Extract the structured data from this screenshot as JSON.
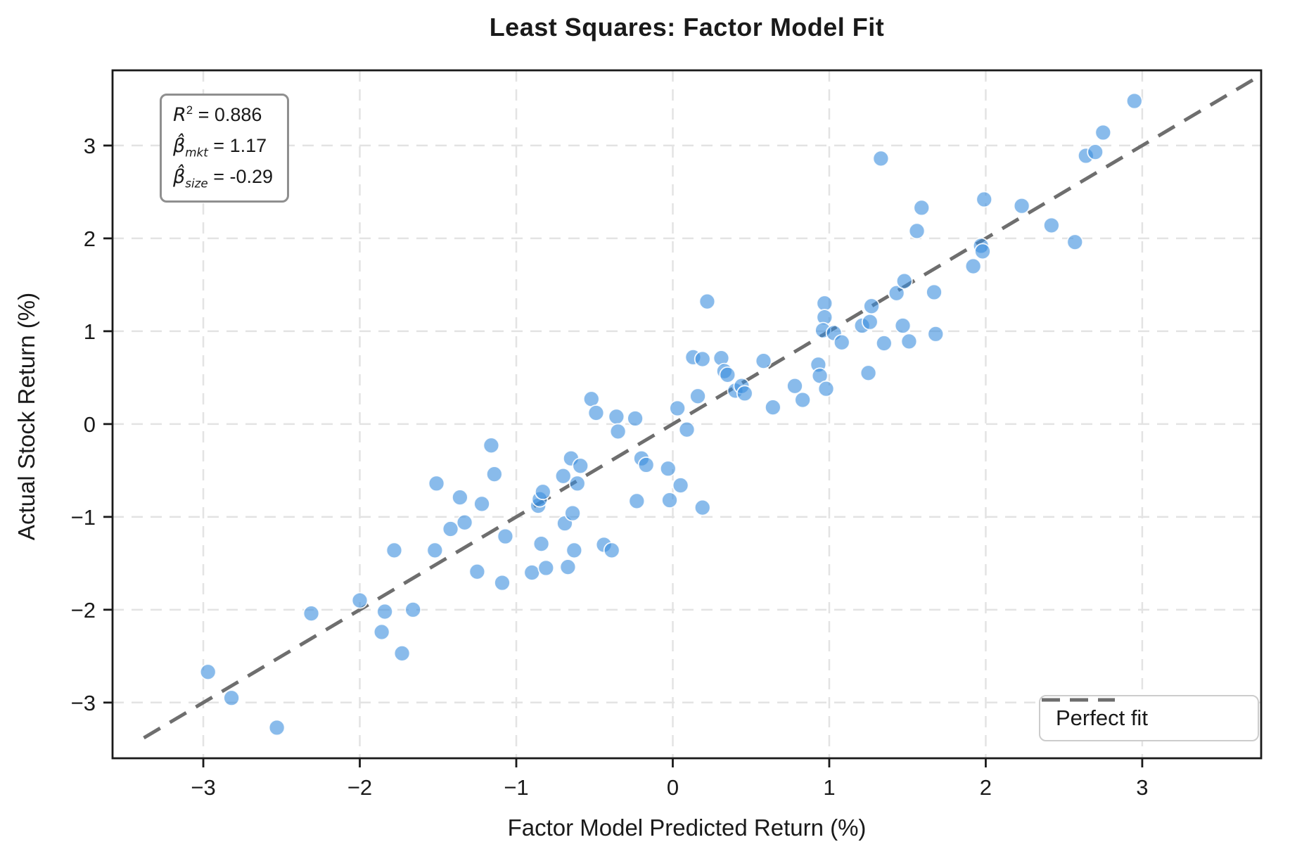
{
  "title": "Least Squares: Factor Model Fit",
  "x_axis_label": "Factor Model Predicted Return (%)",
  "y_axis_label": "Actual Stock Return (%)",
  "stats_box": {
    "lines": [
      {
        "sym": "R",
        "sup": "2",
        "sub": "",
        "rest": " = 0.886"
      },
      {
        "sym": "β̂",
        "sup": "",
        "sub": "mkt",
        "rest": " = 1.17"
      },
      {
        "sym": "β̂",
        "sup": "",
        "sub": "size",
        "rest": " = -0.29"
      }
    ]
  },
  "legend": {
    "label": "Perfect fit"
  },
  "chart_data": {
    "type": "scatter",
    "title": "Least Squares: Factor Model Fit",
    "xlabel": "Factor Model Predicted Return (%)",
    "ylabel": "Actual Stock Return (%)",
    "xlim": [
      -3.58,
      3.76
    ],
    "ylim": [
      -3.6,
      3.81
    ],
    "x_ticks": {
      "values": [
        -3,
        -2,
        -1,
        0,
        1,
        2,
        3
      ],
      "labels": [
        "−3",
        "−2",
        "−1",
        "0",
        "1",
        "2",
        "3"
      ]
    },
    "y_ticks": {
      "values": [
        -3,
        -2,
        -1,
        0,
        1,
        2,
        3
      ],
      "labels": [
        "−3",
        "−2",
        "−1",
        "0",
        "1",
        "2",
        "3"
      ]
    },
    "grid": true,
    "legend_position": "lower right",
    "fit_line": {
      "name": "Perfect fit",
      "x0": -3.38,
      "y0": -3.38,
      "x1": 3.72,
      "y1": 3.72,
      "color": "#6e6e6e",
      "dash": "27 16",
      "width": 5
    },
    "annotations": {
      "r_squared": 0.886,
      "beta_mkt": 1.17,
      "beta_size": -0.29
    },
    "style": {
      "point_fill": "#3a8ede",
      "point_opacity": 0.6,
      "point_edge": "#ffffff",
      "point_radius": 11,
      "grid_color": "#e3e3e3",
      "grid_dash": "16 11",
      "spine_color": "#1a1a1a",
      "text_color": "#1a1a1a"
    },
    "points": [
      [
        -2.97,
        -2.67
      ],
      [
        -2.82,
        -2.95
      ],
      [
        -2.53,
        -3.27
      ],
      [
        -2.31,
        -2.04
      ],
      [
        -2.0,
        -1.9
      ],
      [
        -1.86,
        -2.24
      ],
      [
        -1.84,
        -2.02
      ],
      [
        -1.73,
        -2.47
      ],
      [
        -1.66,
        -2.0
      ],
      [
        -1.78,
        -1.36
      ],
      [
        -1.52,
        -1.36
      ],
      [
        -1.51,
        -0.64
      ],
      [
        -1.42,
        -1.13
      ],
      [
        -1.36,
        -0.79
      ],
      [
        -1.33,
        -1.06
      ],
      [
        -1.25,
        -1.59
      ],
      [
        -1.22,
        -0.86
      ],
      [
        -1.16,
        -0.23
      ],
      [
        -1.14,
        -0.54
      ],
      [
        -1.09,
        -1.71
      ],
      [
        -1.07,
        -1.21
      ],
      [
        -0.9,
        -1.6
      ],
      [
        -0.86,
        -0.88
      ],
      [
        -0.85,
        -0.81
      ],
      [
        -0.84,
        -1.29
      ],
      [
        -0.83,
        -0.73
      ],
      [
        -0.81,
        -1.55
      ],
      [
        -0.7,
        -0.56
      ],
      [
        -0.69,
        -1.07
      ],
      [
        -0.67,
        -1.54
      ],
      [
        -0.65,
        -0.37
      ],
      [
        -0.64,
        -0.96
      ],
      [
        -0.63,
        -1.36
      ],
      [
        -0.61,
        -0.64
      ],
      [
        -0.59,
        -0.45
      ],
      [
        -0.52,
        0.27
      ],
      [
        -0.49,
        0.12
      ],
      [
        -0.44,
        -1.3
      ],
      [
        -0.39,
        -1.36
      ],
      [
        -0.36,
        0.08
      ],
      [
        -0.35,
        -0.08
      ],
      [
        -0.24,
        0.06
      ],
      [
        -0.23,
        -0.83
      ],
      [
        -0.2,
        -0.37
      ],
      [
        -0.17,
        -0.44
      ],
      [
        -0.03,
        -0.48
      ],
      [
        -0.02,
        -0.82
      ],
      [
        0.03,
        0.17
      ],
      [
        0.05,
        -0.66
      ],
      [
        0.09,
        -0.06
      ],
      [
        0.16,
        0.3
      ],
      [
        0.19,
        -0.9
      ],
      [
        0.13,
        0.72
      ],
      [
        0.19,
        0.7
      ],
      [
        0.31,
        0.71
      ],
      [
        0.22,
        1.32
      ],
      [
        0.33,
        0.57
      ],
      [
        0.35,
        0.53
      ],
      [
        0.4,
        0.36
      ],
      [
        0.44,
        0.41
      ],
      [
        0.46,
        0.33
      ],
      [
        0.58,
        0.68
      ],
      [
        0.64,
        0.18
      ],
      [
        0.78,
        0.41
      ],
      [
        0.83,
        0.26
      ],
      [
        0.93,
        0.64
      ],
      [
        0.94,
        0.52
      ],
      [
        0.98,
        0.38
      ],
      [
        0.97,
        1.3
      ],
      [
        0.97,
        1.15
      ],
      [
        0.96,
        1.01
      ],
      [
        1.03,
        0.98
      ],
      [
        1.08,
        0.88
      ],
      [
        1.21,
        1.06
      ],
      [
        1.26,
        1.1
      ],
      [
        1.27,
        1.27
      ],
      [
        1.35,
        0.87
      ],
      [
        1.25,
        0.55
      ],
      [
        1.43,
        1.41
      ],
      [
        1.48,
        1.54
      ],
      [
        1.47,
        1.06
      ],
      [
        1.51,
        0.89
      ],
      [
        1.67,
        1.42
      ],
      [
        1.68,
        0.97
      ],
      [
        1.33,
        2.86
      ],
      [
        1.59,
        2.33
      ],
      [
        1.56,
        2.08
      ],
      [
        1.92,
        1.7
      ],
      [
        1.97,
        1.92
      ],
      [
        1.98,
        1.86
      ],
      [
        1.99,
        2.42
      ],
      [
        2.23,
        2.35
      ],
      [
        2.42,
        2.14
      ],
      [
        2.57,
        1.96
      ],
      [
        2.64,
        2.89
      ],
      [
        2.7,
        2.93
      ],
      [
        2.75,
        3.14
      ],
      [
        2.95,
        3.48
      ]
    ]
  }
}
